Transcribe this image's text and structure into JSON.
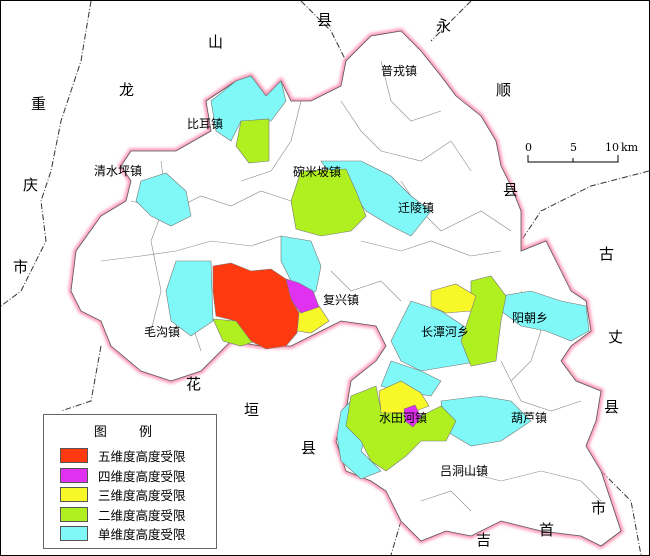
{
  "map": {
    "neighbor_labels": [
      {
        "id": "chongqing-1",
        "text": "重"
      },
      {
        "id": "chongqing-2",
        "text": "庆"
      },
      {
        "id": "chongqing-3",
        "text": "市"
      },
      {
        "id": "longshan-1",
        "text": "山"
      },
      {
        "id": "longshan-2",
        "text": "龙"
      },
      {
        "id": "yongshun-1",
        "text": "县"
      },
      {
        "id": "yongshun-2",
        "text": "永"
      },
      {
        "id": "yongshun-3",
        "text": "顺"
      },
      {
        "id": "yongshun-4",
        "text": "县"
      },
      {
        "id": "guzhang-1",
        "text": "古"
      },
      {
        "id": "guzhang-2",
        "text": "丈"
      },
      {
        "id": "guzhang-3",
        "text": "县"
      },
      {
        "id": "jishou-1",
        "text": "吉"
      },
      {
        "id": "jishou-2",
        "text": "首"
      },
      {
        "id": "jishou-3",
        "text": "市"
      },
      {
        "id": "huayuan-1",
        "text": "花"
      },
      {
        "id": "huayuan-2",
        "text": "垣"
      },
      {
        "id": "huayuan-3",
        "text": "县"
      }
    ],
    "towns": [
      {
        "id": "puge",
        "text": "普戎镇"
      },
      {
        "id": "bier",
        "text": "比耳镇"
      },
      {
        "id": "qingshuiping",
        "text": "清水坪镇"
      },
      {
        "id": "wanmipo",
        "text": "碗米坡镇"
      },
      {
        "id": "qianling",
        "text": "迁陵镇"
      },
      {
        "id": "fuxing",
        "text": "复兴镇"
      },
      {
        "id": "maogou",
        "text": "毛沟镇"
      },
      {
        "id": "changtanhe",
        "text": "长潭河乡"
      },
      {
        "id": "yangchao",
        "text": "阳朝乡"
      },
      {
        "id": "shuitianhe",
        "text": "水田河镇"
      },
      {
        "id": "hulu",
        "text": "葫芦镇"
      },
      {
        "id": "lvdongshan",
        "text": "吕洞山镇"
      }
    ]
  },
  "scale_bar": {
    "ticks": [
      "0",
      "5",
      "10"
    ],
    "unit": "km"
  },
  "legend": {
    "title": "图 例",
    "items": [
      {
        "label": "五维度高度受限",
        "color": "#ff3a10"
      },
      {
        "label": "四维度高度受限",
        "color": "#e030f0"
      },
      {
        "label": "三维度高度受限",
        "color": "#f8f828"
      },
      {
        "label": "二维度高度受限",
        "color": "#b0f020"
      },
      {
        "label": "单维度高度受限",
        "color": "#80f8f8"
      }
    ]
  }
}
